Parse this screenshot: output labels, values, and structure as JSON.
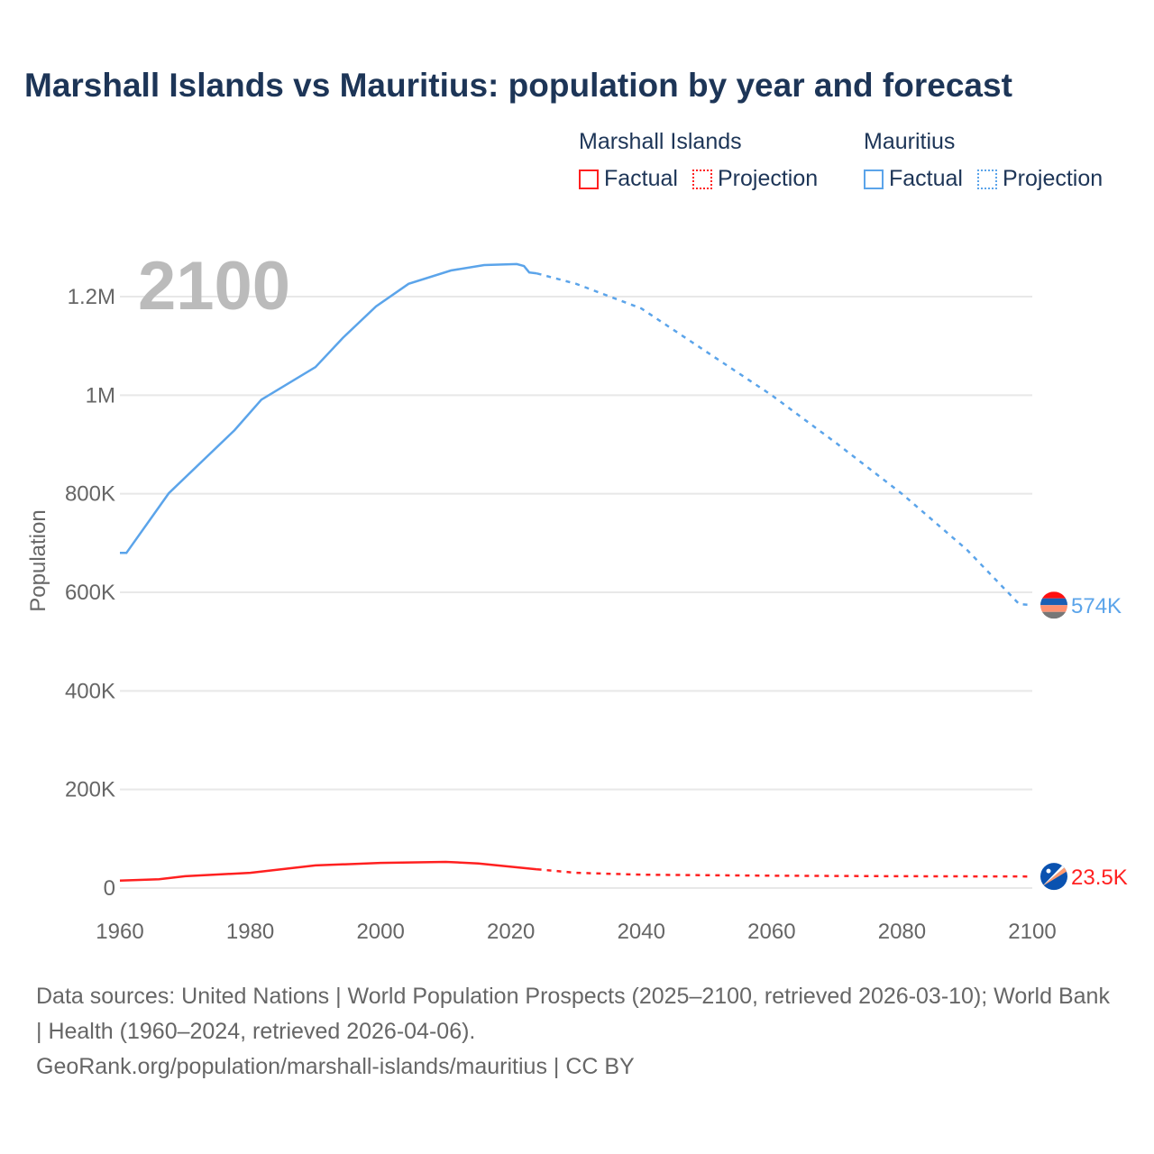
{
  "title": "Marshall Islands vs Mauritius: population by year and forecast",
  "legend": {
    "groups": [
      {
        "name": "Marshall Islands",
        "color": "#ff2020",
        "factual": "Factual",
        "projection": "Projection"
      },
      {
        "name": "Mauritius",
        "color": "#5ba4ea",
        "factual": "Factual",
        "projection": "Projection"
      }
    ]
  },
  "year_watermark": "2100",
  "chart_data": {
    "type": "line",
    "title": "Marshall Islands vs Mauritius: population by year and forecast",
    "xlabel": "",
    "ylabel": "Population",
    "xlim": [
      1960,
      2100
    ],
    "ylim": [
      0,
      1300000
    ],
    "x_ticks": [
      1960,
      1980,
      2000,
      2020,
      2040,
      2060,
      2080,
      2100
    ],
    "y_ticks": [
      0,
      200000,
      400000,
      600000,
      800000,
      1000000,
      1200000
    ],
    "y_tick_labels": [
      "0",
      "200K",
      "400K",
      "600K",
      "800K",
      "1M",
      "1.2M"
    ],
    "grid": true,
    "legend_position": "top-right",
    "series": [
      {
        "name": "Mauritius",
        "color": "#5ba4ea",
        "end_label": "574K",
        "factual": [
          [
            1960,
            680000
          ],
          [
            1961,
            680000
          ],
          [
            1967.5,
            801000
          ],
          [
            1977.6,
            929000
          ],
          [
            1981.7,
            991000
          ],
          [
            1990,
            1057000
          ],
          [
            1994.2,
            1116000
          ],
          [
            1999.3,
            1180000
          ],
          [
            2004.3,
            1226000
          ],
          [
            2010.8,
            1253000
          ],
          [
            2015.9,
            1264000
          ],
          [
            2020.9,
            1266000
          ],
          [
            2022,
            1262000
          ],
          [
            2022.8,
            1249000
          ],
          [
            2024,
            1247000
          ]
        ],
        "projection": [
          [
            2024,
            1247000
          ],
          [
            2030,
            1226000
          ],
          [
            2040,
            1176000
          ],
          [
            2050,
            1088000
          ],
          [
            2060,
            1000000
          ],
          [
            2070,
            902000
          ],
          [
            2080,
            800000
          ],
          [
            2090,
            686000
          ],
          [
            2098,
            576000
          ],
          [
            2100,
            574000
          ]
        ]
      },
      {
        "name": "Marshall Islands",
        "color": "#ff2020",
        "end_label": "23.5K",
        "factual": [
          [
            1960,
            15000
          ],
          [
            1966,
            18000
          ],
          [
            1970,
            24000
          ],
          [
            1980,
            31000
          ],
          [
            1990,
            46000
          ],
          [
            2000,
            51000
          ],
          [
            2010,
            53000
          ],
          [
            2015,
            50000
          ],
          [
            2024,
            38000
          ]
        ],
        "projection": [
          [
            2024,
            38000
          ],
          [
            2030,
            31000
          ],
          [
            2040,
            27000
          ],
          [
            2060,
            25000
          ],
          [
            2080,
            24000
          ],
          [
            2100,
            23500
          ]
        ]
      }
    ]
  },
  "sources": {
    "line1": "Data sources: United Nations | World Population Prospects (2025–2100, retrieved 2026-03-10); World Bank | Health (1960–2024, retrieved 2026-04-06).",
    "line2": "GeoRank.org/population/marshall-islands/mauritius | CC BY"
  }
}
